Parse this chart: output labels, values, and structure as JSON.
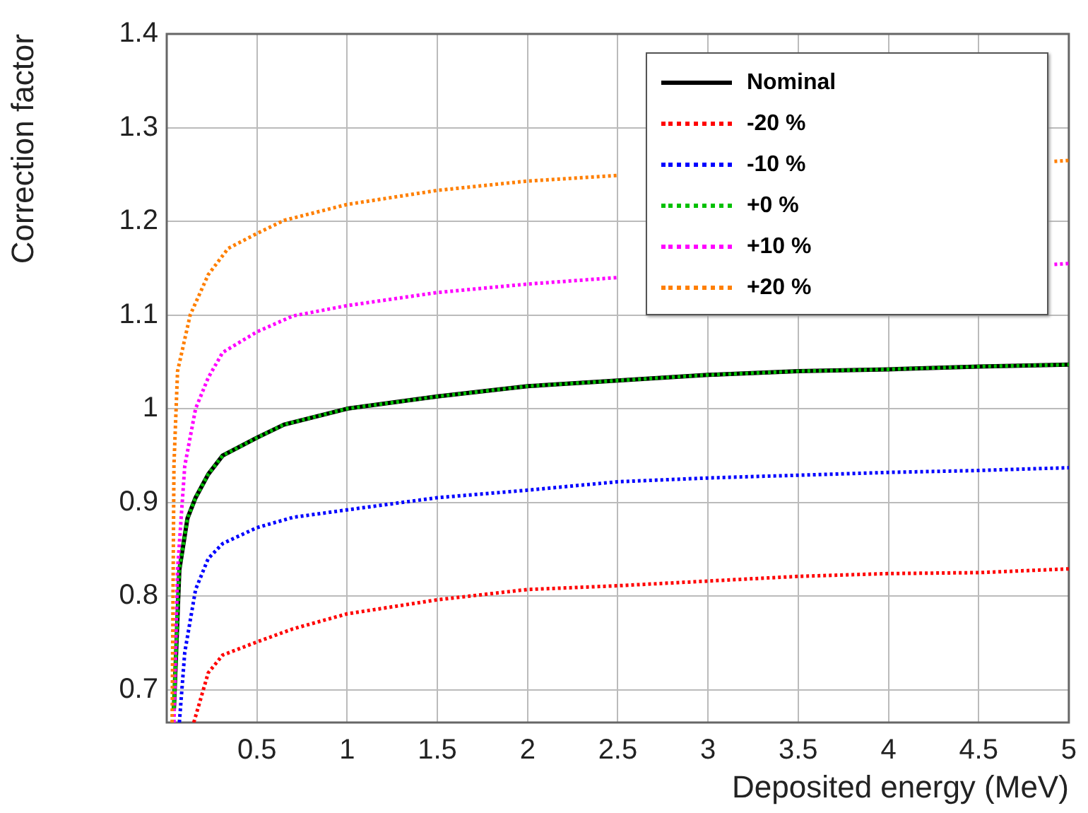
{
  "chart_data": {
    "type": "line",
    "xlabel": "Deposited energy (MeV)",
    "ylabel": "Correction factor",
    "xlim": [
      0,
      5
    ],
    "ylim": [
      0.665,
      1.4
    ],
    "xticks": [
      0.5,
      1,
      1.5,
      2,
      2.5,
      3,
      3.5,
      4,
      4.5,
      5
    ],
    "yticks": [
      0.7,
      0.8,
      0.9,
      1,
      1.1,
      1.2,
      1.3,
      1.4
    ],
    "grid": true,
    "legend": "top right",
    "marker": "none",
    "series": [
      {
        "name": "Nominal",
        "color": "#000000",
        "line_style": "solid",
        "x": [
          0.04,
          0.07,
          0.115,
          0.16,
          0.23,
          0.31,
          0.5,
          0.65,
          1,
          1.5,
          2,
          2.5,
          3,
          3.5,
          4,
          4.5,
          5
        ],
        "values": [
          0.68,
          0.828,
          0.883,
          0.905,
          0.93,
          0.95,
          0.969,
          0.983,
          1.0,
          1.013,
          1.024,
          1.03,
          1.036,
          1.04,
          1.042,
          1.045,
          1.047
        ]
      },
      {
        "name": "-20 %",
        "color": "#ff0000",
        "line_style": "dotted",
        "x": [
          0.15,
          0.23,
          0.31,
          0.5,
          0.7,
          1,
          1.5,
          2,
          2.5,
          3,
          3.5,
          4,
          4.5,
          5
        ],
        "values": [
          0.665,
          0.718,
          0.737,
          0.751,
          0.765,
          0.781,
          0.796,
          0.807,
          0.811,
          0.816,
          0.821,
          0.824,
          0.825,
          0.829
        ]
      },
      {
        "name": "-10 %",
        "color": "#0000ff",
        "line_style": "dotted",
        "x": [
          0.07,
          0.1,
          0.16,
          0.23,
          0.31,
          0.5,
          0.7,
          1,
          1.5,
          2,
          2.5,
          3,
          3.5,
          4,
          4.5,
          5
        ],
        "values": [
          0.665,
          0.74,
          0.807,
          0.84,
          0.856,
          0.873,
          0.884,
          0.892,
          0.905,
          0.913,
          0.922,
          0.926,
          0.929,
          0.932,
          0.934,
          0.937
        ]
      },
      {
        "name": "+0 %",
        "color": "#00c000",
        "line_style": "dotted",
        "x": [
          0.04,
          0.07,
          0.115,
          0.16,
          0.23,
          0.31,
          0.5,
          0.65,
          1,
          1.5,
          2,
          2.5,
          3,
          3.5,
          4,
          4.5,
          5
        ],
        "values": [
          0.68,
          0.828,
          0.883,
          0.905,
          0.93,
          0.95,
          0.969,
          0.983,
          1.0,
          1.013,
          1.024,
          1.03,
          1.036,
          1.04,
          1.042,
          1.045,
          1.047
        ]
      },
      {
        "name": "+10 %",
        "color": "#ff00ff",
        "line_style": "dotted",
        "x": [
          0.04,
          0.06,
          0.1,
          0.16,
          0.23,
          0.31,
          0.5,
          0.7,
          1,
          1.5,
          2,
          2.5,
          3,
          3.5,
          4,
          4.5,
          4.92,
          5
        ],
        "values": [
          0.665,
          0.828,
          0.939,
          1.0,
          1.033,
          1.06,
          1.082,
          1.099,
          1.11,
          1.124,
          1.133,
          1.14,
          null,
          null,
          null,
          null,
          1.154,
          1.155
        ]
      },
      {
        "name": "+20 %",
        "color": "#ff7f00",
        "line_style": "dotted",
        "x": [
          0.03,
          0.04,
          0.06,
          0.13,
          0.23,
          0.34,
          0.5,
          0.65,
          1,
          1.5,
          2,
          2.5,
          3,
          3.5,
          4,
          4.5,
          4.92,
          5
        ],
        "values": [
          0.665,
          0.94,
          1.04,
          1.1,
          1.143,
          1.171,
          1.187,
          1.201,
          1.218,
          1.233,
          1.243,
          1.249,
          null,
          null,
          null,
          null,
          1.264,
          1.265
        ]
      }
    ]
  }
}
